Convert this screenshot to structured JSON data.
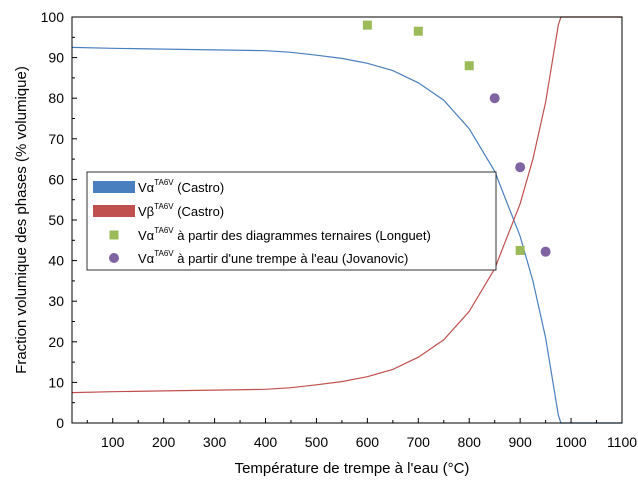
{
  "chart_data": {
    "type": "line",
    "xlabel": "Température de trempe à l'eau (°C)",
    "ylabel": "Fraction volumique des phases (% volumique)",
    "xlim": [
      20,
      1100
    ],
    "ylim": [
      0,
      100
    ],
    "xticks": [
      100,
      200,
      300,
      400,
      500,
      600,
      700,
      800,
      900,
      1000,
      1100
    ],
    "yticks": [
      0,
      10,
      20,
      30,
      40,
      50,
      60,
      70,
      80,
      90,
      100
    ],
    "grid": false,
    "legend_position": "left-middle",
    "series": [
      {
        "id": "alpha_castro",
        "kind": "line",
        "color": "#4a7fbf",
        "legend": {
          "main": "Vα",
          "sup": "TA6V",
          "rest": " (Castro)"
        },
        "x": [
          20,
          100,
          200,
          300,
          400,
          450,
          500,
          550,
          600,
          650,
          700,
          750,
          800,
          850,
          900,
          925,
          950,
          975,
          980,
          1000,
          1100
        ],
        "y": [
          92.5,
          92.3,
          92.1,
          91.9,
          91.7,
          91.3,
          90.6,
          89.8,
          88.6,
          86.8,
          83.8,
          79.5,
          72.5,
          62,
          46,
          35,
          21,
          2,
          0,
          0,
          0
        ]
      },
      {
        "id": "beta_castro",
        "kind": "line",
        "color": "#c0504d",
        "legend": {
          "main": "Vβ",
          "sup": "TA6V",
          "rest": " (Castro)"
        },
        "x": [
          20,
          100,
          200,
          300,
          400,
          450,
          500,
          550,
          600,
          650,
          700,
          750,
          800,
          850,
          900,
          925,
          950,
          975,
          980,
          1000,
          1100
        ],
        "y": [
          7.5,
          7.7,
          7.9,
          8.1,
          8.3,
          8.7,
          9.4,
          10.2,
          11.4,
          13.2,
          16.2,
          20.5,
          27.5,
          38,
          54,
          65,
          79,
          98,
          100,
          100,
          100
        ]
      },
      {
        "id": "alpha_longuet",
        "kind": "scatter",
        "marker": "square",
        "color": "#9bbb59",
        "legend": {
          "main": "Vα",
          "sup": "TA6V",
          "rest": " à partir des diagrammes ternaires (Longuet)"
        },
        "x": [
          600,
          700,
          800,
          900
        ],
        "y": [
          98,
          96.5,
          88,
          42.5
        ]
      },
      {
        "id": "alpha_jovanovic",
        "kind": "scatter",
        "marker": "circle",
        "color": "#8064a2",
        "legend": {
          "main": "Vα",
          "sup": "TA6V",
          "rest": " à partir d'une trempe à l'eau (Jovanovic)"
        },
        "x": [
          850,
          900,
          950
        ],
        "y": [
          80,
          63,
          42.2
        ]
      }
    ]
  }
}
